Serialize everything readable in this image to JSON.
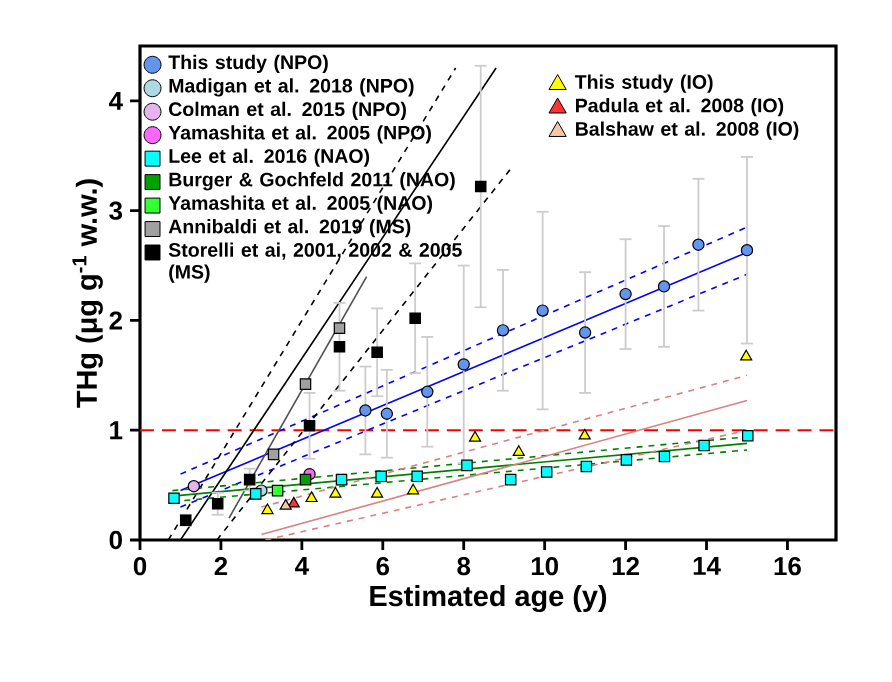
{
  "chart_data": {
    "type": "scatter",
    "xlabel": "Estimated age (y)",
    "ylabel": "THg (μg g$^{-1}$ w.w.)",
    "xlim": [
      0,
      17.2
    ],
    "ylim": [
      0,
      4.5
    ],
    "xticks": [
      0,
      2,
      4,
      6,
      8,
      10,
      12,
      14,
      16
    ],
    "yticks": [
      0,
      1,
      2,
      3,
      4
    ],
    "grid": false,
    "legend": "top",
    "ref_lines": [
      {
        "axis": "y",
        "value": 1,
        "color": "#ff0000",
        "line_style": "dashed"
      }
    ],
    "series": [
      {
        "type": "line",
        "color": "#0000ff",
        "line_style": "solid",
        "x": [
          1,
          15
        ],
        "values": [
          0.45,
          2.62
        ]
      },
      {
        "type": "line",
        "color": "#0000ff",
        "line_style": "dashed",
        "x": [
          1,
          15
        ],
        "values": [
          0.6,
          2.85
        ]
      },
      {
        "type": "line",
        "color": "#0000ff",
        "line_style": "dashed",
        "x": [
          1,
          15
        ],
        "values": [
          0.3,
          2.42
        ]
      },
      {
        "type": "line",
        "color": "#000000",
        "line_style": "solid",
        "x": [
          1.0,
          8.8
        ],
        "values": [
          0,
          4.3
        ]
      },
      {
        "type": "line",
        "color": "#000000",
        "line_style": "dashed",
        "x": [
          0.7,
          7.8
        ],
        "values": [
          0,
          4.3
        ]
      },
      {
        "type": "line",
        "color": "#000000",
        "line_style": "dashed",
        "x": [
          1.9,
          9.2
        ],
        "values": [
          0,
          3.4
        ]
      },
      {
        "type": "line",
        "color": "#505050",
        "line_style": "solid",
        "x": [
          2.2,
          5.6
        ],
        "values": [
          0.2,
          2.4
        ]
      },
      {
        "type": "line",
        "color": "#008000",
        "line_style": "solid",
        "x": [
          0.8,
          15
        ],
        "values": [
          0.4,
          0.88
        ]
      },
      {
        "type": "line",
        "color": "#008000",
        "line_style": "dashed",
        "x": [
          0.8,
          15
        ],
        "values": [
          0.45,
          0.94
        ]
      },
      {
        "type": "line",
        "color": "#008000",
        "line_style": "dashed",
        "x": [
          0.8,
          15
        ],
        "values": [
          0.35,
          0.82
        ]
      },
      {
        "type": "line",
        "color": "#d98080",
        "line_style": "solid",
        "x": [
          3,
          15
        ],
        "values": [
          0.05,
          1.27
        ]
      },
      {
        "type": "line",
        "color": "#d98080",
        "line_style": "dashed",
        "x": [
          3,
          15
        ],
        "values": [
          0.3,
          1.5
        ]
      },
      {
        "type": "line",
        "color": "#d98080",
        "line_style": "dashed",
        "x": [
          3.1,
          15
        ],
        "values": [
          0.0,
          1.0
        ]
      },
      {
        "name": "This study (NPO)",
        "marker": "circle",
        "color": "#6495ed",
        "x": [
          5.57,
          6.1,
          7.1,
          8.0,
          8.97,
          9.95,
          11.0,
          12.0,
          12.95,
          13.8,
          15.0
        ],
        "values": [
          1.18,
          1.15,
          1.35,
          1.6,
          1.91,
          2.09,
          1.89,
          2.24,
          2.31,
          2.69,
          2.64
        ],
        "errors": [
          0.4,
          0.4,
          0.5,
          0.9,
          0.55,
          0.9,
          0.55,
          0.5,
          0.55,
          0.6,
          0.85
        ]
      },
      {
        "name": "Madigan et al. 2018 (NPO)",
        "marker": "circle",
        "color": "#add8e6",
        "x": [
          3.0
        ],
        "values": [
          0.45
        ]
      },
      {
        "name": "Colman et al. 2015 (NPO)",
        "marker": "circle",
        "color": "#e6b3f0",
        "x": [
          1.33
        ],
        "values": [
          0.49
        ]
      },
      {
        "name": "Yamashita et al. 2005 (NPO)",
        "marker": "circle",
        "color": "#ff66ff",
        "x": [
          4.19
        ],
        "values": [
          0.6
        ]
      },
      {
        "name": "Lee et al. 2016 (NAO)",
        "marker": "square",
        "color": "#00ffff",
        "x": [
          0.84,
          2.86,
          4.98,
          5.96,
          6.85,
          8.08,
          9.16,
          10.05,
          11.03,
          12.02,
          12.96,
          13.94,
          15.02
        ],
        "values": [
          0.38,
          0.42,
          0.55,
          0.58,
          0.58,
          0.68,
          0.55,
          0.62,
          0.67,
          0.73,
          0.76,
          0.86,
          0.95
        ]
      },
      {
        "name": "Burger & Gochfeld 2011 (NAO)",
        "marker": "square",
        "color": "#00a000",
        "x": [
          4.09
        ],
        "values": [
          0.55
        ]
      },
      {
        "name": "Yamashita et al. 2005 (NAO)",
        "marker": "square",
        "color": "#33ff33",
        "x": [
          3.4
        ],
        "values": [
          0.45
        ]
      },
      {
        "name": "Annibaldi et al. 2019 (MS)",
        "marker": "square",
        "color": "#a0a0a0",
        "x": [
          3.3,
          4.09,
          4.93
        ],
        "values": [
          0.78,
          1.42,
          1.93
        ]
      },
      {
        "name": "Storelli et ai, 2001, 2002 & 2005 (MS)",
        "marker": "square",
        "color": "#000000",
        "x": [
          1.13,
          1.92,
          2.71,
          4.19,
          4.93,
          5.86,
          6.8,
          8.42
        ],
        "values": [
          0.18,
          0.33,
          0.55,
          1.04,
          1.76,
          1.71,
          2.02,
          3.22
        ],
        "errors": [
          0.05,
          0.1,
          0.1,
          0.3,
          0.4,
          0.4,
          0.5,
          1.1
        ]
      },
      {
        "name": "This study (IO)",
        "marker": "triangle",
        "color": "#ffff00",
        "x": [
          3.15,
          4.24,
          4.83,
          5.86,
          6.75,
          8.28,
          9.36,
          10.99,
          14.98
        ],
        "values": [
          0.27,
          0.38,
          0.42,
          0.42,
          0.45,
          0.93,
          0.8,
          0.95,
          1.67
        ]
      },
      {
        "name": "Padula et al. 2008 (IO)",
        "marker": "triangle",
        "color": "#ff3333",
        "x": [
          3.8
        ],
        "values": [
          0.33
        ]
      },
      {
        "name": "Balshaw et al. 2008 (IO)",
        "marker": "triangle",
        "color": "#f5c8a8",
        "x": [
          3.6
        ],
        "values": [
          0.31
        ]
      }
    ]
  }
}
